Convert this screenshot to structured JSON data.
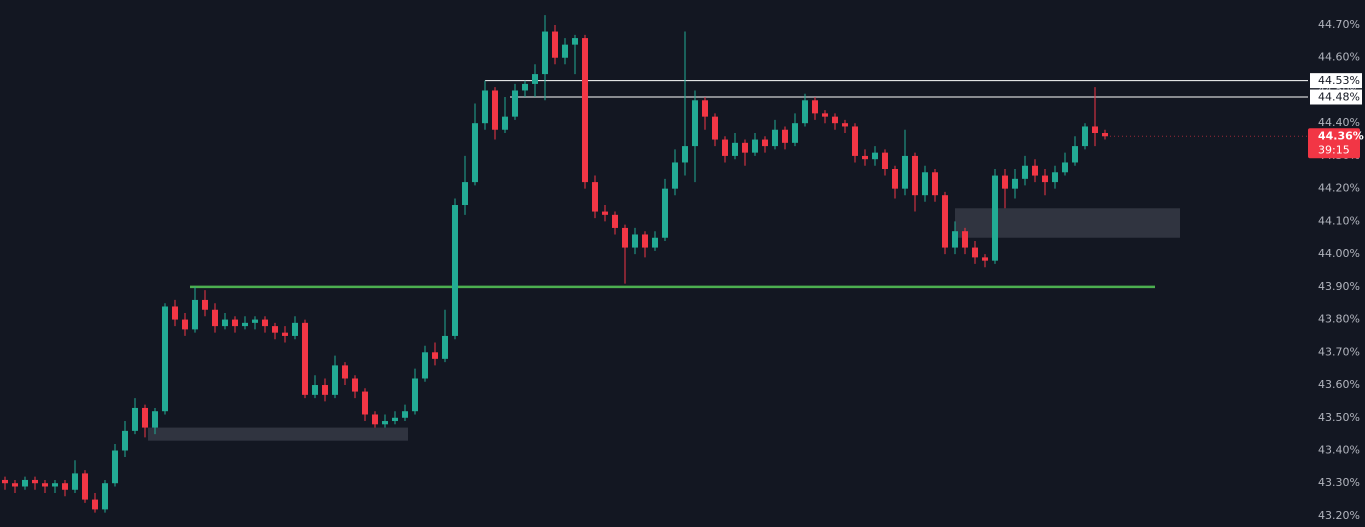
{
  "chart_data": {
    "type": "candlestick",
    "up_color": "#22ab94",
    "down_color": "#f23645",
    "ylim": [
      43.18,
      44.76
    ],
    "yticks": [
      {
        "value": 43.2,
        "label": "43.20%"
      },
      {
        "value": 43.3,
        "label": "43.30%"
      },
      {
        "value": 43.4,
        "label": "43.40%"
      },
      {
        "value": 43.5,
        "label": "43.50%"
      },
      {
        "value": 43.6,
        "label": "43.60%"
      },
      {
        "value": 43.7,
        "label": "43.70%"
      },
      {
        "value": 43.8,
        "label": "43.80%"
      },
      {
        "value": 43.9,
        "label": "43.90%"
      },
      {
        "value": 44.0,
        "label": "44.00%"
      },
      {
        "value": 44.1,
        "label": "44.10%"
      },
      {
        "value": 44.2,
        "label": "44.20%"
      },
      {
        "value": 44.3,
        "label": "44.30%"
      },
      {
        "value": 44.4,
        "label": "44.40%"
      },
      {
        "value": 44.5,
        "label": "44.50%"
      },
      {
        "value": 44.6,
        "label": "44.60%"
      },
      {
        "value": 44.7,
        "label": "44.70%"
      }
    ],
    "grid": false,
    "hlines": [
      {
        "value": 44.53,
        "label": "44.53%",
        "color": "#ffffff"
      },
      {
        "value": 44.48,
        "label": "44.48%",
        "color": "#ffffff"
      },
      {
        "value": 43.9,
        "color": "#4caf50"
      }
    ],
    "zones": [
      {
        "from": 43.43,
        "to": 43.47,
        "color": "#363a45"
      },
      {
        "from": 44.05,
        "to": 44.14,
        "color": "#363a45"
      }
    ],
    "last_price": {
      "value": 44.36,
      "label": "44.36%",
      "countdown": "39:15",
      "color": "#f23645"
    },
    "candles": [
      [
        43.31,
        43.32,
        43.28,
        43.3
      ],
      [
        43.3,
        43.31,
        43.27,
        43.29
      ],
      [
        43.29,
        43.32,
        43.28,
        43.31
      ],
      [
        43.31,
        43.32,
        43.28,
        43.3
      ],
      [
        43.3,
        43.31,
        43.27,
        43.29
      ],
      [
        43.29,
        43.31,
        43.27,
        43.3
      ],
      [
        43.3,
        43.31,
        43.26,
        43.28
      ],
      [
        43.28,
        43.37,
        43.27,
        43.33
      ],
      [
        43.33,
        43.34,
        43.24,
        43.25
      ],
      [
        43.25,
        43.27,
        43.21,
        43.22
      ],
      [
        43.22,
        43.31,
        43.21,
        43.3
      ],
      [
        43.3,
        43.42,
        43.29,
        43.4
      ],
      [
        43.4,
        43.49,
        43.38,
        43.46
      ],
      [
        43.46,
        43.56,
        43.45,
        43.53
      ],
      [
        43.53,
        43.54,
        43.44,
        43.47
      ],
      [
        43.47,
        43.53,
        43.45,
        43.52
      ],
      [
        43.52,
        43.85,
        43.51,
        43.84
      ],
      [
        43.84,
        43.86,
        43.78,
        43.8
      ],
      [
        43.8,
        43.82,
        43.75,
        43.77
      ],
      [
        43.77,
        43.9,
        43.76,
        43.86
      ],
      [
        43.86,
        43.89,
        43.81,
        43.83
      ],
      [
        43.83,
        43.85,
        43.76,
        43.78
      ],
      [
        43.78,
        43.82,
        43.77,
        43.8
      ],
      [
        43.8,
        43.81,
        43.76,
        43.78
      ],
      [
        43.78,
        43.81,
        43.77,
        43.79
      ],
      [
        43.79,
        43.81,
        43.77,
        43.8
      ],
      [
        43.8,
        43.81,
        43.76,
        43.78
      ],
      [
        43.78,
        43.79,
        43.74,
        43.76
      ],
      [
        43.76,
        43.78,
        43.73,
        43.75
      ],
      [
        43.75,
        43.81,
        43.74,
        43.79
      ],
      [
        43.79,
        43.8,
        43.56,
        43.57
      ],
      [
        43.57,
        43.63,
        43.56,
        43.6
      ],
      [
        43.6,
        43.62,
        43.55,
        43.57
      ],
      [
        43.57,
        43.69,
        43.56,
        43.66
      ],
      [
        43.66,
        43.67,
        43.6,
        43.62
      ],
      [
        43.62,
        43.63,
        43.56,
        43.58
      ],
      [
        43.58,
        43.59,
        43.49,
        43.51
      ],
      [
        43.51,
        43.52,
        43.47,
        43.48
      ],
      [
        43.48,
        43.51,
        43.47,
        43.49
      ],
      [
        43.49,
        43.52,
        43.48,
        43.5
      ],
      [
        43.5,
        43.54,
        43.49,
        43.52
      ],
      [
        43.52,
        43.65,
        43.51,
        43.62
      ],
      [
        43.62,
        43.72,
        43.61,
        43.7
      ],
      [
        43.7,
        43.73,
        43.66,
        43.68
      ],
      [
        43.68,
        43.83,
        43.67,
        43.75
      ],
      [
        43.75,
        44.17,
        43.74,
        44.15
      ],
      [
        44.15,
        44.3,
        44.12,
        44.22
      ],
      [
        44.22,
        44.46,
        44.21,
        44.4
      ],
      [
        44.4,
        44.53,
        44.38,
        44.5
      ],
      [
        44.5,
        44.51,
        44.35,
        44.38
      ],
      [
        44.38,
        44.48,
        44.37,
        44.42
      ],
      [
        44.42,
        44.52,
        44.41,
        44.5
      ],
      [
        44.5,
        44.53,
        44.48,
        44.52
      ],
      [
        44.52,
        44.58,
        44.48,
        44.55
      ],
      [
        44.55,
        44.73,
        44.47,
        44.68
      ],
      [
        44.68,
        44.7,
        44.58,
        44.6
      ],
      [
        44.6,
        44.66,
        44.58,
        44.64
      ],
      [
        44.64,
        44.67,
        44.55,
        44.66
      ],
      [
        44.66,
        44.67,
        44.2,
        44.22
      ],
      [
        44.22,
        44.24,
        44.11,
        44.13
      ],
      [
        44.13,
        44.15,
        44.1,
        44.12
      ],
      [
        44.12,
        44.13,
        44.06,
        44.08
      ],
      [
        44.08,
        44.09,
        43.91,
        44.02
      ],
      [
        44.02,
        44.08,
        44.0,
        44.06
      ],
      [
        44.06,
        44.07,
        43.99,
        44.02
      ],
      [
        44.02,
        44.07,
        44.01,
        44.05
      ],
      [
        44.05,
        44.23,
        44.04,
        44.2
      ],
      [
        44.2,
        44.32,
        44.18,
        44.28
      ],
      [
        44.28,
        44.68,
        44.24,
        44.33
      ],
      [
        44.33,
        44.5,
        44.22,
        44.47
      ],
      [
        44.47,
        44.48,
        44.38,
        44.42
      ],
      [
        44.42,
        44.43,
        44.33,
        44.35
      ],
      [
        44.35,
        44.36,
        44.28,
        44.3
      ],
      [
        44.3,
        44.37,
        44.29,
        44.34
      ],
      [
        44.34,
        44.35,
        44.27,
        44.31
      ],
      [
        44.31,
        44.37,
        44.3,
        44.35
      ],
      [
        44.35,
        44.36,
        44.31,
        44.33
      ],
      [
        44.33,
        44.41,
        44.32,
        44.38
      ],
      [
        44.38,
        44.39,
        44.32,
        44.34
      ],
      [
        44.34,
        44.43,
        44.33,
        44.4
      ],
      [
        44.4,
        44.49,
        44.39,
        44.47
      ],
      [
        44.47,
        44.48,
        44.41,
        44.43
      ],
      [
        44.43,
        44.44,
        44.4,
        44.42
      ],
      [
        44.42,
        44.43,
        44.38,
        44.4
      ],
      [
        44.4,
        44.41,
        44.37,
        44.39
      ],
      [
        44.39,
        44.4,
        44.28,
        44.3
      ],
      [
        44.3,
        44.32,
        44.27,
        44.29
      ],
      [
        44.29,
        44.33,
        44.27,
        44.31
      ],
      [
        44.31,
        44.32,
        44.24,
        44.26
      ],
      [
        44.26,
        44.27,
        44.17,
        44.2
      ],
      [
        44.2,
        44.38,
        44.18,
        44.3
      ],
      [
        44.3,
        44.31,
        44.13,
        44.18
      ],
      [
        44.18,
        44.27,
        44.16,
        44.25
      ],
      [
        44.25,
        44.26,
        44.16,
        44.18
      ],
      [
        44.18,
        44.19,
        44.0,
        44.02
      ],
      [
        44.02,
        44.1,
        44.0,
        44.07
      ],
      [
        44.07,
        44.08,
        44.0,
        44.02
      ],
      [
        44.02,
        44.04,
        43.97,
        43.99
      ],
      [
        43.99,
        44.0,
        43.96,
        43.98
      ],
      [
        43.98,
        44.26,
        43.97,
        44.24
      ],
      [
        44.24,
        44.26,
        44.14,
        44.2
      ],
      [
        44.2,
        44.26,
        44.17,
        44.23
      ],
      [
        44.23,
        44.3,
        44.21,
        44.27
      ],
      [
        44.27,
        44.29,
        44.22,
        44.24
      ],
      [
        44.24,
        44.26,
        44.18,
        44.22
      ],
      [
        44.22,
        44.27,
        44.2,
        44.25
      ],
      [
        44.25,
        44.31,
        44.24,
        44.28
      ],
      [
        44.28,
        44.36,
        44.27,
        44.33
      ],
      [
        44.33,
        44.4,
        44.32,
        44.39
      ],
      [
        44.39,
        44.51,
        44.33,
        44.37
      ],
      [
        44.37,
        44.38,
        44.35,
        44.36
      ]
    ]
  }
}
